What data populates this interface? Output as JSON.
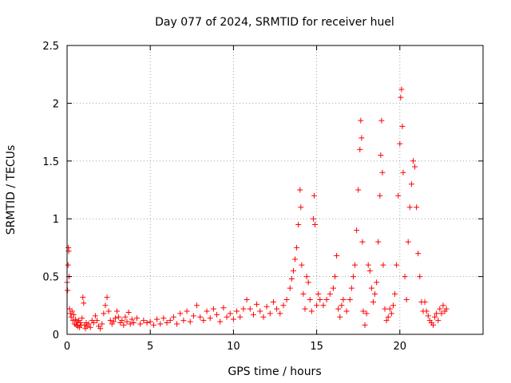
{
  "chart_data": {
    "type": "scatter",
    "title": "Day 077 of 2024, SRMTID for receiver huel",
    "xlabel": "GPS time / hours",
    "ylabel": "SRMTID / TECUs",
    "xlim": [
      0,
      25
    ],
    "ylim": [
      0,
      2.5
    ],
    "x_ticks": [
      0,
      5,
      10,
      15,
      20
    ],
    "y_ticks": [
      0,
      0.5,
      1,
      1.5,
      2,
      2.5
    ],
    "x_tick_labels": [
      "0",
      "5",
      "10",
      "15",
      "20"
    ],
    "y_tick_labels": [
      "0",
      "0.5",
      "1",
      "1.5",
      "2",
      "2.5"
    ],
    "grid": true,
    "marker": "+",
    "color": "#ff0000",
    "series": [
      {
        "name": "SRMTID",
        "points": [
          [
            0.0,
            0.45
          ],
          [
            0.03,
            0.38
          ],
          [
            0.06,
            0.6
          ],
          [
            0.08,
            0.75
          ],
          [
            0.1,
            0.72
          ],
          [
            0.12,
            0.5
          ],
          [
            0.15,
            0.22
          ],
          [
            0.2,
            0.18
          ],
          [
            0.25,
            0.15
          ],
          [
            0.3,
            0.2
          ],
          [
            0.35,
            0.12
          ],
          [
            0.4,
            0.17
          ],
          [
            0.45,
            0.09
          ],
          [
            0.5,
            0.13
          ],
          [
            0.55,
            0.08
          ],
          [
            0.6,
            0.11
          ],
          [
            0.65,
            0.07
          ],
          [
            0.7,
            0.12
          ],
          [
            0.75,
            0.06
          ],
          [
            0.8,
            0.1
          ],
          [
            0.85,
            0.08
          ],
          [
            0.9,
            0.14
          ],
          [
            0.95,
            0.32
          ],
          [
            1.0,
            0.27
          ],
          [
            1.05,
            0.08
          ],
          [
            1.1,
            0.05
          ],
          [
            1.15,
            0.1
          ],
          [
            1.2,
            0.07
          ],
          [
            1.3,
            0.09
          ],
          [
            1.4,
            0.06
          ],
          [
            1.5,
            0.12
          ],
          [
            1.6,
            0.1
          ],
          [
            1.7,
            0.16
          ],
          [
            1.8,
            0.12
          ],
          [
            1.9,
            0.07
          ],
          [
            2.0,
            0.05
          ],
          [
            2.1,
            0.09
          ],
          [
            2.2,
            0.18
          ],
          [
            2.3,
            0.25
          ],
          [
            2.4,
            0.32
          ],
          [
            2.5,
            0.2
          ],
          [
            2.6,
            0.12
          ],
          [
            2.7,
            0.09
          ],
          [
            2.8,
            0.11
          ],
          [
            2.9,
            0.14
          ],
          [
            3.0,
            0.2
          ],
          [
            3.1,
            0.15
          ],
          [
            3.2,
            0.1
          ],
          [
            3.3,
            0.12
          ],
          [
            3.4,
            0.08
          ],
          [
            3.5,
            0.15
          ],
          [
            3.6,
            0.11
          ],
          [
            3.7,
            0.19
          ],
          [
            3.8,
            0.09
          ],
          [
            3.9,
            0.13
          ],
          [
            4.0,
            0.1
          ],
          [
            4.2,
            0.14
          ],
          [
            4.4,
            0.09
          ],
          [
            4.6,
            0.12
          ],
          [
            4.8,
            0.1
          ],
          [
            5.0,
            0.11
          ],
          [
            5.2,
            0.08
          ],
          [
            5.4,
            0.13
          ],
          [
            5.6,
            0.09
          ],
          [
            5.8,
            0.14
          ],
          [
            6.0,
            0.1
          ],
          [
            6.2,
            0.12
          ],
          [
            6.4,
            0.15
          ],
          [
            6.6,
            0.09
          ],
          [
            6.8,
            0.18
          ],
          [
            7.0,
            0.12
          ],
          [
            7.2,
            0.2
          ],
          [
            7.4,
            0.11
          ],
          [
            7.6,
            0.16
          ],
          [
            7.8,
            0.25
          ],
          [
            8.0,
            0.15
          ],
          [
            8.2,
            0.12
          ],
          [
            8.4,
            0.2
          ],
          [
            8.6,
            0.14
          ],
          [
            8.8,
            0.22
          ],
          [
            9.0,
            0.17
          ],
          [
            9.2,
            0.11
          ],
          [
            9.4,
            0.23
          ],
          [
            9.6,
            0.15
          ],
          [
            9.8,
            0.18
          ],
          [
            10.0,
            0.13
          ],
          [
            10.2,
            0.2
          ],
          [
            10.4,
            0.15
          ],
          [
            10.6,
            0.22
          ],
          [
            10.8,
            0.3
          ],
          [
            11.0,
            0.22
          ],
          [
            11.2,
            0.17
          ],
          [
            11.4,
            0.26
          ],
          [
            11.6,
            0.2
          ],
          [
            11.8,
            0.15
          ],
          [
            12.0,
            0.24
          ],
          [
            12.2,
            0.18
          ],
          [
            12.4,
            0.28
          ],
          [
            12.6,
            0.22
          ],
          [
            12.8,
            0.18
          ],
          [
            13.0,
            0.25
          ],
          [
            13.2,
            0.3
          ],
          [
            13.4,
            0.4
          ],
          [
            13.5,
            0.48
          ],
          [
            13.6,
            0.55
          ],
          [
            13.7,
            0.65
          ],
          [
            13.8,
            0.75
          ],
          [
            13.9,
            0.95
          ],
          [
            14.0,
            1.25
          ],
          [
            14.05,
            1.1
          ],
          [
            14.1,
            0.6
          ],
          [
            14.2,
            0.35
          ],
          [
            14.3,
            0.22
          ],
          [
            14.4,
            0.5
          ],
          [
            14.5,
            0.45
          ],
          [
            14.6,
            0.3
          ],
          [
            14.7,
            0.2
          ],
          [
            14.8,
            1.0
          ],
          [
            14.85,
            1.2
          ],
          [
            14.9,
            0.95
          ],
          [
            15.0,
            0.25
          ],
          [
            15.1,
            0.35
          ],
          [
            15.2,
            0.3
          ],
          [
            15.4,
            0.25
          ],
          [
            15.6,
            0.3
          ],
          [
            15.8,
            0.35
          ],
          [
            16.0,
            0.4
          ],
          [
            16.1,
            0.5
          ],
          [
            16.2,
            0.68
          ],
          [
            16.3,
            0.22
          ],
          [
            16.4,
            0.15
          ],
          [
            16.5,
            0.25
          ],
          [
            16.6,
            0.3
          ],
          [
            16.8,
            0.2
          ],
          [
            17.0,
            0.3
          ],
          [
            17.1,
            0.4
          ],
          [
            17.2,
            0.5
          ],
          [
            17.3,
            0.6
          ],
          [
            17.4,
            0.9
          ],
          [
            17.5,
            1.25
          ],
          [
            17.6,
            1.6
          ],
          [
            17.65,
            1.85
          ],
          [
            17.7,
            1.7
          ],
          [
            17.75,
            0.8
          ],
          [
            17.8,
            0.2
          ],
          [
            17.9,
            0.08
          ],
          [
            18.0,
            0.18
          ],
          [
            18.1,
            0.6
          ],
          [
            18.2,
            0.55
          ],
          [
            18.3,
            0.4
          ],
          [
            18.4,
            0.28
          ],
          [
            18.5,
            0.35
          ],
          [
            18.6,
            0.45
          ],
          [
            18.7,
            0.8
          ],
          [
            18.8,
            1.2
          ],
          [
            18.85,
            1.55
          ],
          [
            18.9,
            1.85
          ],
          [
            18.95,
            1.4
          ],
          [
            19.0,
            0.6
          ],
          [
            19.1,
            0.22
          ],
          [
            19.2,
            0.12
          ],
          [
            19.3,
            0.15
          ],
          [
            19.4,
            0.22
          ],
          [
            19.5,
            0.18
          ],
          [
            19.6,
            0.25
          ],
          [
            19.7,
            0.35
          ],
          [
            19.8,
            0.6
          ],
          [
            19.9,
            1.2
          ],
          [
            20.0,
            1.65
          ],
          [
            20.05,
            2.05
          ],
          [
            20.1,
            2.12
          ],
          [
            20.15,
            1.8
          ],
          [
            20.2,
            1.4
          ],
          [
            20.3,
            0.5
          ],
          [
            20.4,
            0.3
          ],
          [
            20.5,
            0.8
          ],
          [
            20.6,
            1.1
          ],
          [
            20.7,
            1.3
          ],
          [
            20.8,
            1.5
          ],
          [
            20.9,
            1.45
          ],
          [
            21.0,
            1.1
          ],
          [
            21.1,
            0.7
          ],
          [
            21.2,
            0.5
          ],
          [
            21.3,
            0.28
          ],
          [
            21.4,
            0.2
          ],
          [
            21.5,
            0.28
          ],
          [
            21.6,
            0.2
          ],
          [
            21.7,
            0.16
          ],
          [
            21.8,
            0.12
          ],
          [
            21.9,
            0.1
          ],
          [
            22.0,
            0.08
          ],
          [
            22.1,
            0.15
          ],
          [
            22.2,
            0.18
          ],
          [
            22.3,
            0.12
          ],
          [
            22.4,
            0.22
          ],
          [
            22.5,
            0.18
          ],
          [
            22.6,
            0.25
          ],
          [
            22.7,
            0.2
          ],
          [
            22.8,
            0.22
          ]
        ]
      }
    ]
  }
}
